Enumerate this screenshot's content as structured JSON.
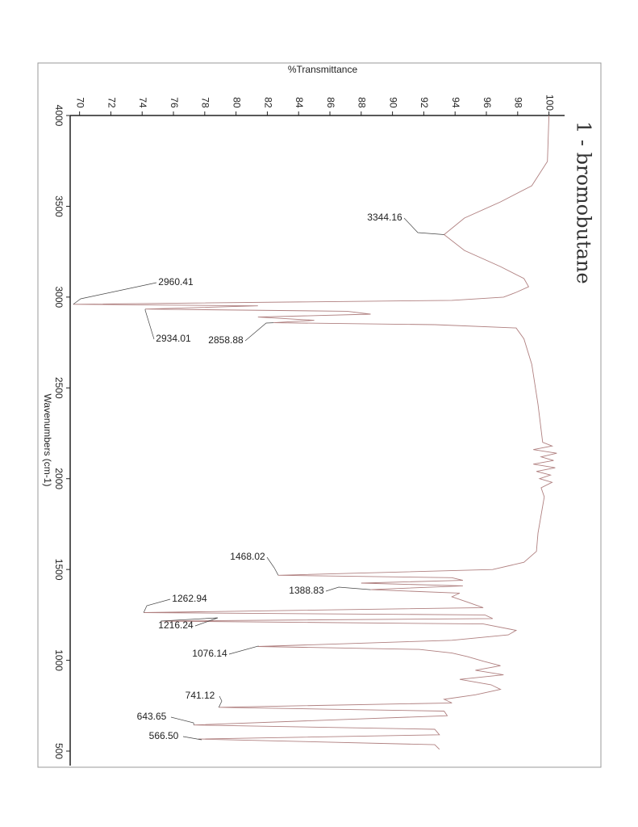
{
  "chart_data": {
    "type": "line",
    "title": "%Transmittance",
    "x_label": "Wavenumbers (cm-1)",
    "handwritten_label": "1 - bromobutane",
    "xlim": [
      4000,
      420
    ],
    "ylim": [
      69.4,
      101
    ],
    "xticks": [
      4000,
      3500,
      3000,
      2500,
      2000,
      1500,
      1000,
      500
    ],
    "yticks": [
      70,
      72,
      74,
      76,
      78,
      80,
      82,
      84,
      86,
      88,
      90,
      92,
      94,
      96,
      98,
      100
    ],
    "x": [
      4000,
      3747,
      3613,
      3524,
      3435,
      3344.16,
      3257,
      3168,
      3102,
      3057,
      3026,
      3000,
      2982,
      2960.41,
      2952,
      2934.01,
      2922,
      2906,
      2890,
      2872,
      2858.88,
      2848,
      2830,
      2770,
      2630,
      2410,
      2200,
      2180,
      2160,
      2140,
      2120,
      2100,
      2080,
      2060,
      2040,
      2020,
      2000,
      1980,
      1950,
      1900,
      1800,
      1700,
      1600,
      1540,
      1500,
      1468.02,
      1455,
      1440,
      1425,
      1410,
      1388.83,
      1370,
      1350,
      1320,
      1290,
      1262.94,
      1250,
      1230,
      1216.24,
      1200,
      1165,
      1140,
      1110,
      1076.14,
      1060,
      1040,
      1020,
      995,
      970,
      945,
      920,
      895,
      865,
      840,
      810,
      785,
      765,
      741.12,
      720,
      695,
      643.65,
      620,
      590,
      566.5,
      535,
      510
    ],
    "series": [
      {
        "color": "#b08080",
        "values": [
          100.0,
          99.9,
          98.9,
          96.9,
          94.6,
          93.3,
          94.6,
          96.9,
          98.4,
          98.7,
          97.9,
          97.1,
          93.8,
          69.6,
          81.4,
          74.2,
          87.1,
          88.6,
          81.4,
          85.0,
          82.4,
          92.7,
          97.9,
          98.4,
          98.9,
          99.3,
          99.6,
          100.2,
          99.0,
          100.5,
          99.5,
          100.3,
          99.0,
          100.4,
          99.2,
          100.1,
          99.4,
          100.2,
          99.5,
          99.7,
          99.5,
          99.3,
          99.2,
          98.4,
          96.4,
          82.7,
          93.8,
          94.5,
          88.0,
          94.5,
          88.6,
          94.3,
          93.8,
          94.8,
          95.8,
          74.1,
          95.9,
          96.4,
          75.2,
          95.8,
          97.9,
          97.4,
          93.8,
          81.4,
          91.7,
          93.8,
          94.8,
          95.8,
          96.9,
          95.3,
          97.1,
          94.3,
          96.3,
          96.9,
          95.3,
          93.3,
          93.8,
          78.9,
          93.3,
          93.5,
          77.3,
          92.7,
          93.0,
          77.6,
          92.7,
          93.0
        ]
      }
    ],
    "annotations": [
      {
        "x": 3344.16,
        "y": 93.3,
        "label": "3344.16"
      },
      {
        "x": 2960.41,
        "y": 69.6,
        "label": "2960.41"
      },
      {
        "x": 2934.01,
        "y": 74.2,
        "label": "2934.01"
      },
      {
        "x": 2858.88,
        "y": 82.4,
        "label": "2858.88"
      },
      {
        "x": 1468.02,
        "y": 82.7,
        "label": "1468.02"
      },
      {
        "x": 1388.83,
        "y": 88.6,
        "label": "1388.83"
      },
      {
        "x": 1262.94,
        "y": 74.1,
        "label": "1262.94"
      },
      {
        "x": 1216.24,
        "y": 75.2,
        "label": "1216.24"
      },
      {
        "x": 1076.14,
        "y": 81.4,
        "label": "1076.14"
      },
      {
        "x": 741.12,
        "y": 78.9,
        "label": "741.12"
      },
      {
        "x": 643.65,
        "y": 77.3,
        "label": "643.65"
      },
      {
        "x": 566.5,
        "y": 77.6,
        "label": "566.50"
      }
    ]
  }
}
